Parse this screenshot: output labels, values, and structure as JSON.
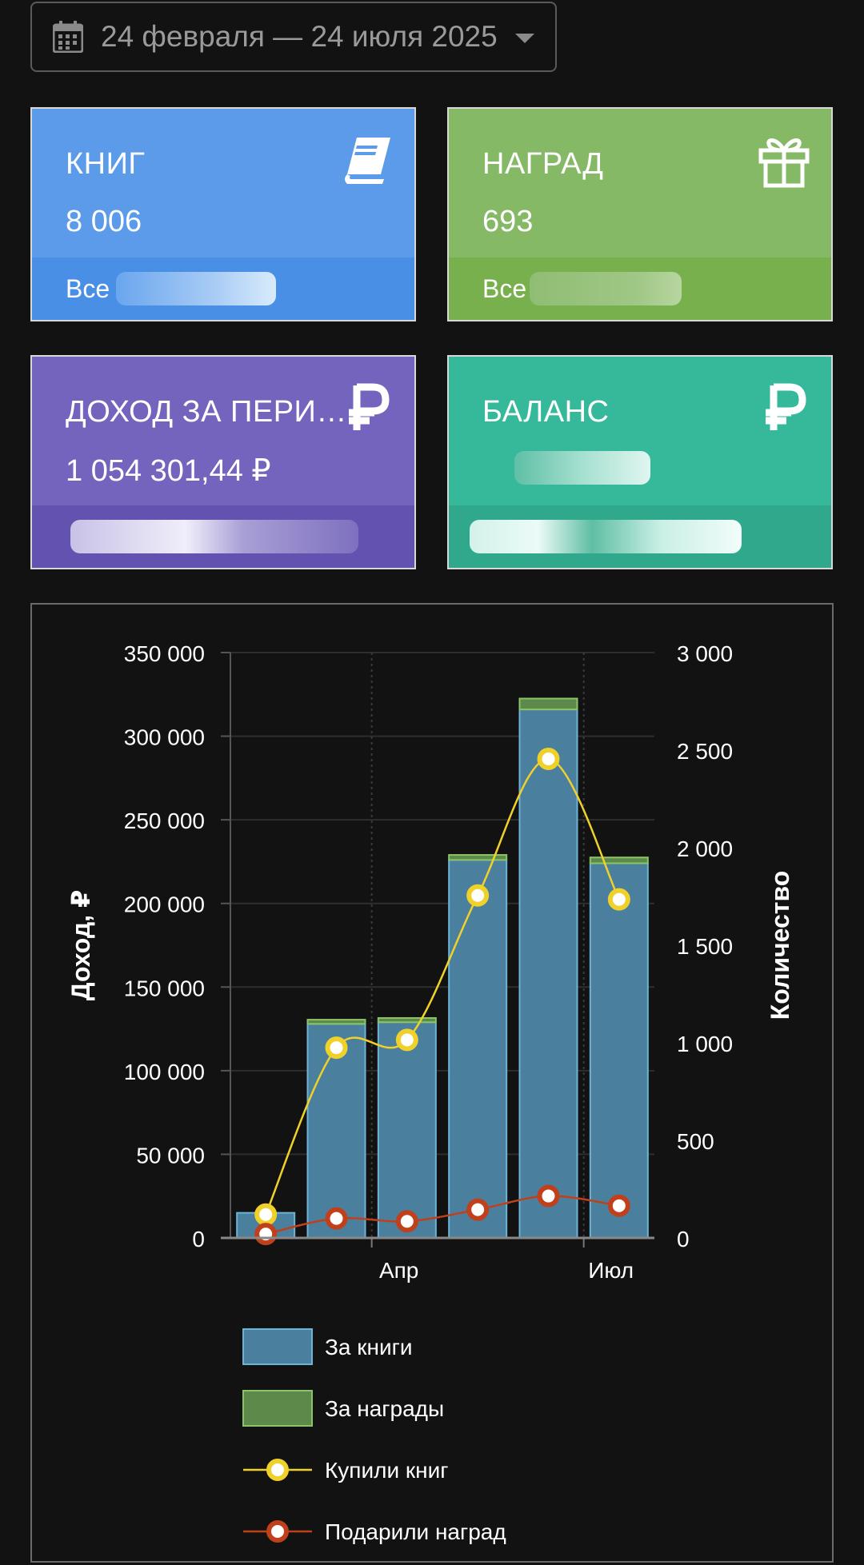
{
  "date_range": {
    "label": "24 февраля — 24 июля 2025"
  },
  "cards": {
    "books": {
      "title": "КНИГ",
      "value": "8 006",
      "footer": "Все"
    },
    "awards": {
      "title": "НАГРАД",
      "value": "693",
      "footer": "Все"
    },
    "income": {
      "title": "ДОХОД ЗА ПЕРИ…",
      "value": "1 054 301,44 ₽"
    },
    "balance": {
      "title": "БАЛАНС"
    }
  },
  "colors": {
    "books_card": "#5b9bea",
    "books_footer": "#4a8fe6",
    "awards_card": "#86b966",
    "awards_footer": "#78b04e",
    "income_card": "#7464bd",
    "income_footer": "#6452b0",
    "balance_card": "#35b99a",
    "balance_footer": "#2fa88b",
    "bar_books": "#4a7f9e",
    "bar_awards": "#5d8a4a",
    "line_books": "#f0d12a",
    "line_awards": "#c0401c"
  },
  "chart_data": {
    "type": "bar",
    "ylabel": "Доход, ₽",
    "y2label": "Количество",
    "ylim": [
      0,
      350000
    ],
    "y2lim": [
      0,
      3000
    ],
    "yticks": [
      "350 000",
      "300 000",
      "250 000",
      "200 000",
      "150 000",
      "100 000",
      "50 000",
      "0"
    ],
    "y2ticks": [
      "3 000",
      "2 500",
      "2 000",
      "1 500",
      "1 000",
      "500",
      "0"
    ],
    "xticks": [
      "Апр",
      "Июл"
    ],
    "grid": true,
    "legend_position": "bottom",
    "bar_series": [
      {
        "name": "За книги",
        "values": [
          15000,
          128000,
          129000,
          226000,
          316000,
          224000
        ]
      },
      {
        "name": "За награды",
        "values": [
          0,
          2500,
          2500,
          3000,
          6500,
          3500
        ]
      }
    ],
    "line_series": [
      {
        "name": "Купили книг",
        "values": [
          120,
          975,
          1015,
          1755,
          2455,
          1735
        ]
      },
      {
        "name": "Подарили наград",
        "values": [
          20,
          100,
          85,
          145,
          215,
          165
        ]
      }
    ]
  }
}
